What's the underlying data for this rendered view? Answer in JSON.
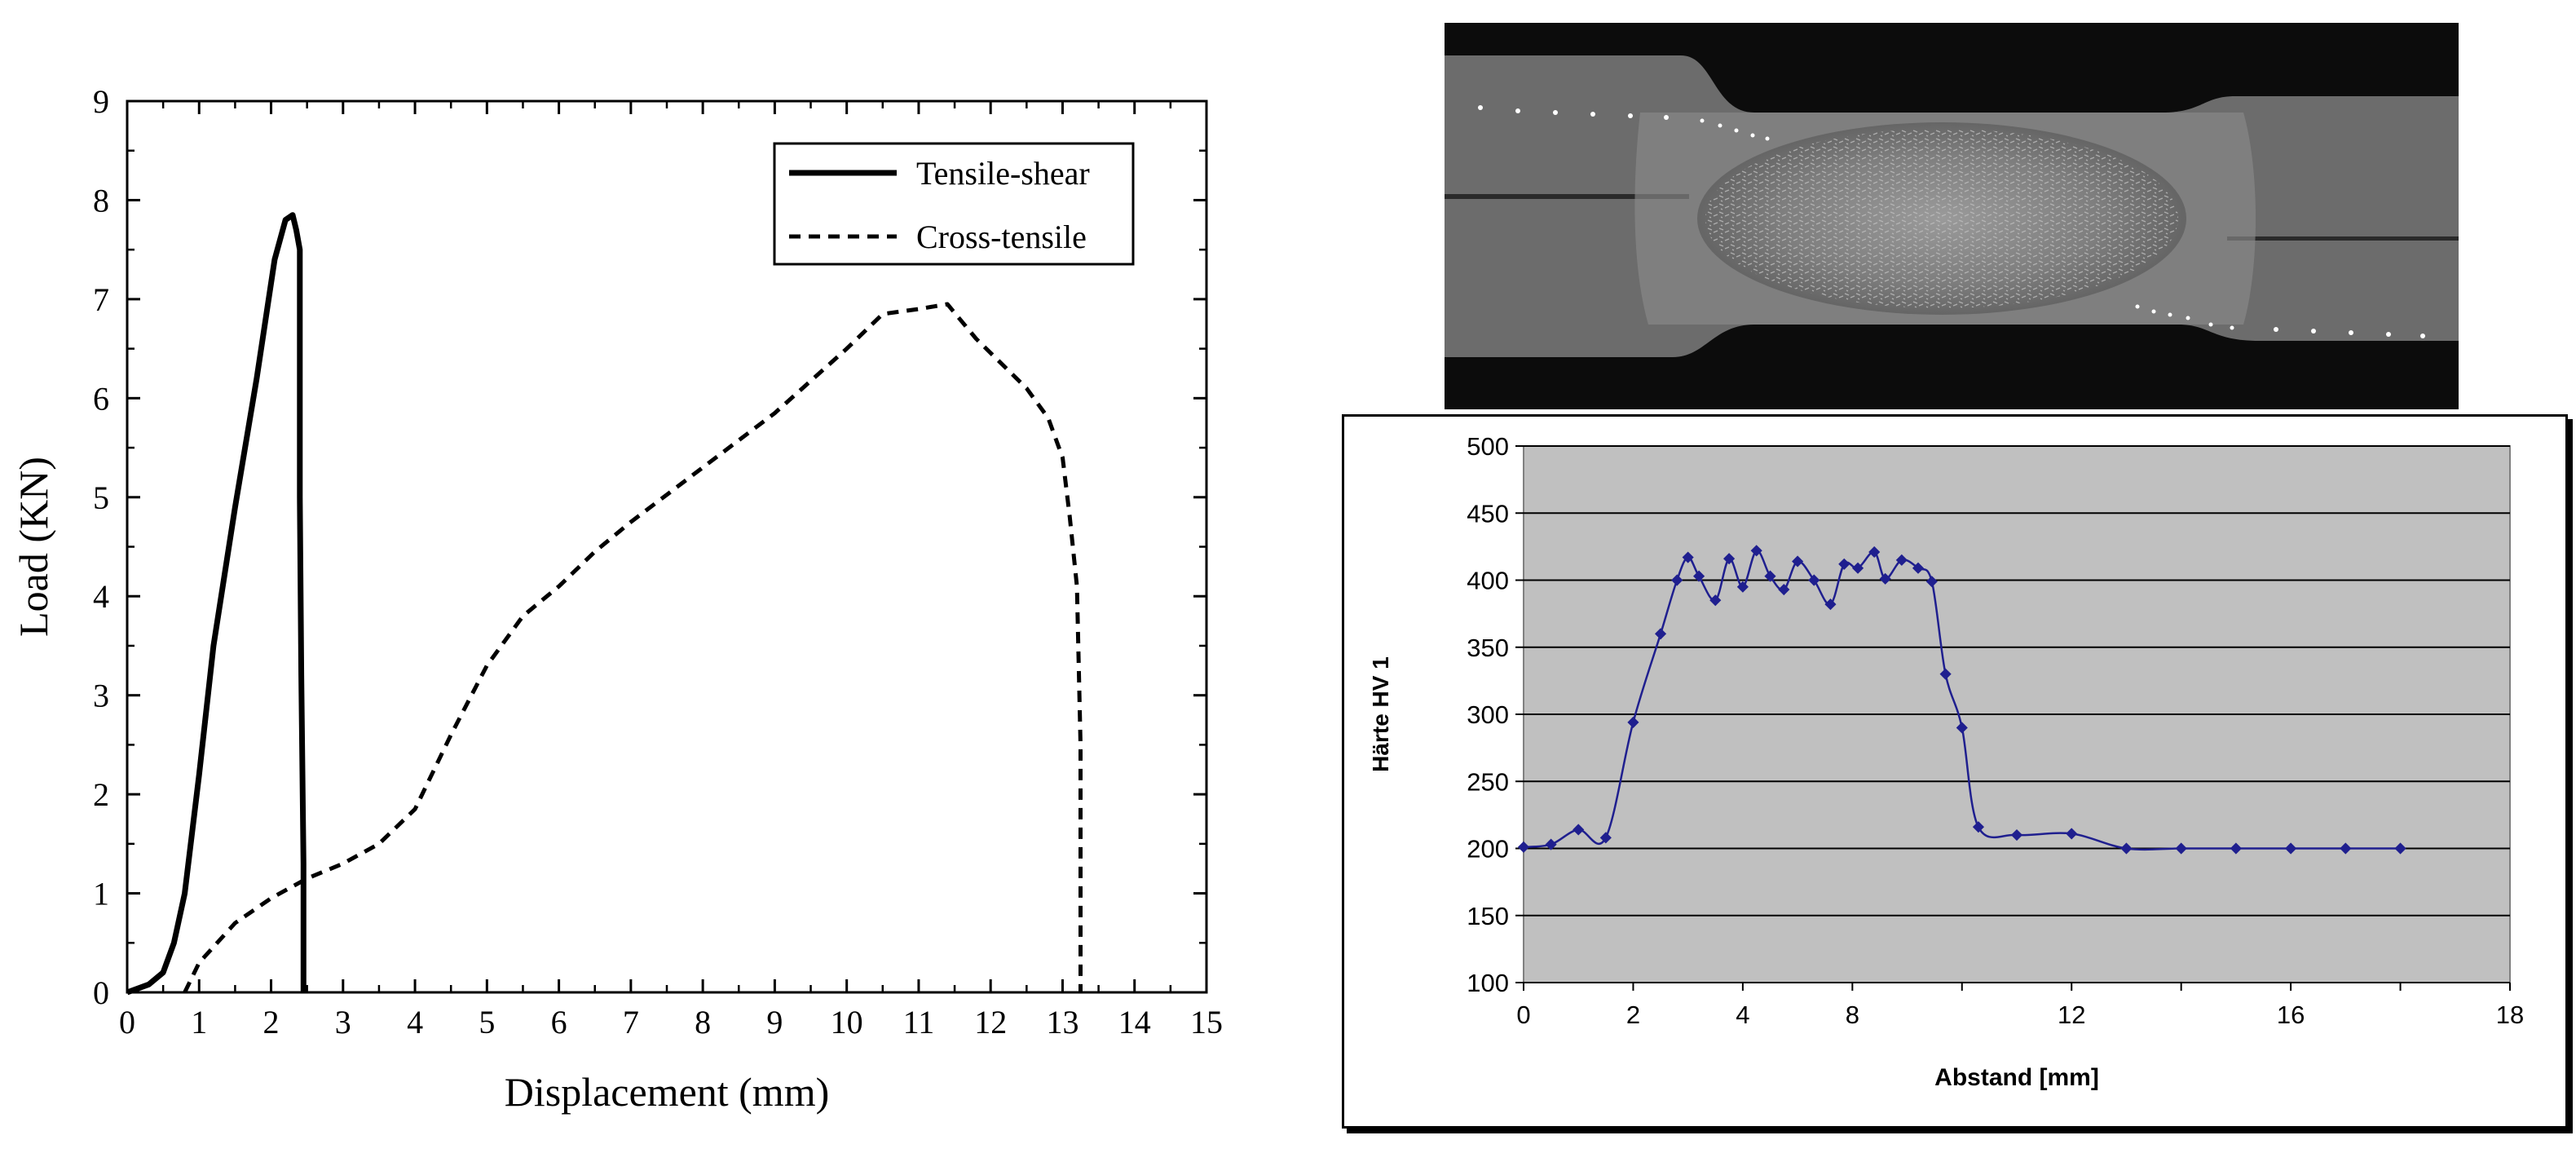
{
  "chart_data": [
    {
      "type": "line",
      "xlabel": "Displacement (mm)",
      "ylabel": "Load (KN)",
      "xlim": [
        0,
        15
      ],
      "ylim": [
        0,
        9
      ],
      "xticks": [
        "0",
        "1",
        "2",
        "3",
        "4",
        "5",
        "6",
        "7",
        "8",
        "9",
        "10",
        "11",
        "12",
        "13",
        "14",
        "15"
      ],
      "yticks": [
        "0",
        "1",
        "2",
        "3",
        "4",
        "5",
        "6",
        "7",
        "8",
        "9"
      ],
      "grid": false,
      "legend_position": "top-right",
      "series": [
        {
          "name": "Tensile-shear",
          "style": "solid",
          "color": "#000000",
          "x": [
            0,
            0.3,
            0.5,
            0.65,
            0.8,
            1.0,
            1.2,
            1.5,
            1.8,
            2.05,
            2.2,
            2.3,
            2.35,
            2.4,
            2.4,
            2.42,
            2.45,
            2.45
          ],
          "y": [
            0,
            0.08,
            0.2,
            0.5,
            1.0,
            2.2,
            3.5,
            4.9,
            6.2,
            7.4,
            7.8,
            7.85,
            7.7,
            7.5,
            5.0,
            3.2,
            1.3,
            0
          ]
        },
        {
          "name": "Cross-tensile",
          "style": "dashed",
          "color": "#000000",
          "x": [
            0.8,
            1.0,
            1.5,
            2.0,
            2.5,
            3.0,
            3.5,
            4.0,
            4.5,
            5.0,
            5.5,
            6.0,
            6.5,
            7.0,
            8.0,
            9.0,
            10.0,
            10.5,
            11.0,
            11.4,
            11.8,
            12.5,
            12.8,
            13.0,
            13.1,
            13.2,
            13.25,
            13.25
          ],
          "y": [
            0,
            0.3,
            0.7,
            0.95,
            1.15,
            1.3,
            1.5,
            1.85,
            2.6,
            3.3,
            3.8,
            4.1,
            4.45,
            4.75,
            5.3,
            5.85,
            6.5,
            6.85,
            6.9,
            6.95,
            6.6,
            6.1,
            5.8,
            5.4,
            4.8,
            4.1,
            2.5,
            0
          ]
        }
      ]
    },
    {
      "type": "line",
      "xlabel": "Abstand [mm]",
      "ylabel": "Härte HV 1",
      "xlim": [
        0,
        18
      ],
      "ylim": [
        100,
        500
      ],
      "xticks": [
        "0",
        "2",
        "4",
        "8",
        "12",
        "16",
        "18"
      ],
      "yticks": [
        "100",
        "150",
        "200",
        "250",
        "300",
        "350",
        "400",
        "450",
        "500"
      ],
      "grid": true,
      "plot_background": "#c0c0c0",
      "series": [
        {
          "color": "#1f1f8f",
          "x": [
            0,
            0.5,
            1.0,
            1.5,
            2.0,
            2.5,
            2.8,
            3.0,
            3.2,
            3.5,
            3.75,
            4.0,
            4.25,
            4.5,
            4.75,
            5.0,
            5.3,
            5.6,
            5.85,
            6.1,
            6.4,
            6.6,
            6.9,
            7.2,
            7.45,
            7.7,
            8.0,
            8.3,
            9.0,
            10.0,
            11.0,
            12.0,
            13.0,
            14.0,
            15.0,
            16.0
          ],
          "y": [
            201,
            203,
            214,
            208,
            294,
            360,
            400,
            417,
            403,
            385,
            416,
            395,
            422,
            403,
            393,
            414,
            400,
            382,
            412,
            409,
            421,
            401,
            415,
            409,
            399,
            330,
            290,
            216,
            210,
            211,
            200,
            200,
            200,
            200,
            200,
            200
          ]
        }
      ]
    }
  ],
  "micrograph": {
    "description_icon": "weld-cross-section-image"
  }
}
